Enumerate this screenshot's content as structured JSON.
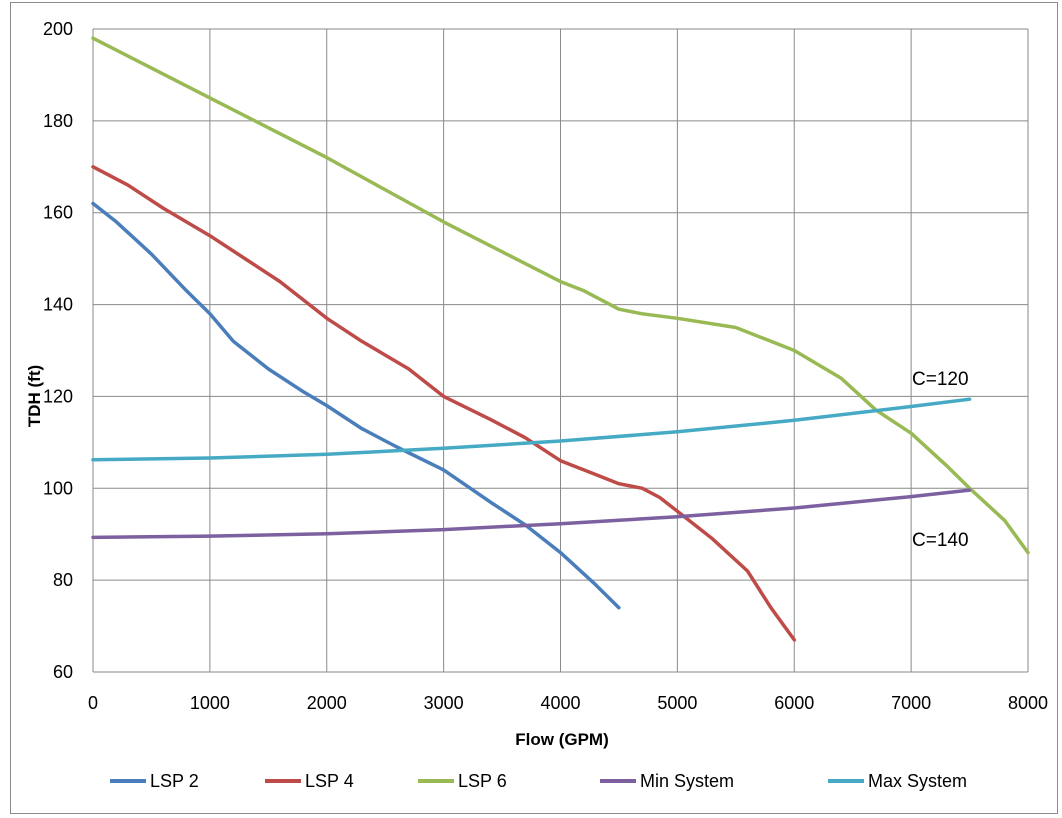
{
  "chart_data": {
    "type": "line",
    "title": "",
    "xlabel": "Flow (GPM)",
    "ylabel": "TDH (ft)",
    "xlim": [
      0,
      8000
    ],
    "ylim": [
      60,
      200
    ],
    "x_ticks": [
      0,
      1000,
      2000,
      3000,
      4000,
      5000,
      6000,
      7000,
      8000
    ],
    "y_ticks": [
      60,
      80,
      100,
      120,
      140,
      160,
      180,
      200
    ],
    "grid": true,
    "legend_position": "bottom",
    "series": [
      {
        "name": "LSP 2",
        "color": "#4a7ebb",
        "x": [
          0,
          200,
          500,
          800,
          1000,
          1200,
          1500,
          1800,
          2000,
          2300,
          2600,
          3000,
          3400,
          3700,
          4000,
          4300,
          4500
        ],
        "y": [
          162,
          158,
          151,
          143,
          138,
          132,
          126,
          121,
          118,
          113,
          109,
          104,
          97,
          92,
          86,
          79,
          74
        ]
      },
      {
        "name": "LSP 4",
        "color": "#be4b48",
        "x": [
          0,
          300,
          600,
          1000,
          1300,
          1600,
          2000,
          2300,
          2700,
          3000,
          3400,
          3700,
          4000,
          4300,
          4500,
          4700,
          4850,
          5000,
          5300,
          5600,
          5800,
          6000
        ],
        "y": [
          170,
          166,
          161,
          155,
          150,
          145,
          137,
          132,
          126,
          120,
          115,
          111,
          106,
          103,
          101,
          100,
          98,
          95,
          89,
          82,
          74,
          67
        ],
        "markers": []
      },
      {
        "name": "LSP 6",
        "color": "#98b954",
        "x": [
          0,
          1000,
          2000,
          3000,
          4000,
          4200,
          4500,
          4700,
          5000,
          5500,
          6000,
          6400,
          6700,
          7000,
          7300,
          7500,
          7800,
          8000
        ],
        "y": [
          198,
          185,
          172,
          158,
          145,
          143,
          139,
          138,
          137,
          135,
          130,
          124,
          117,
          112,
          105,
          100,
          93,
          86
        ]
      },
      {
        "name": "Min System",
        "color": "#7d60a0",
        "x": [
          0,
          1000,
          2000,
          3000,
          4000,
          5000,
          6000,
          7000,
          7500
        ],
        "y": [
          89.3,
          89.6,
          90.1,
          91,
          92.3,
          93.8,
          95.7,
          98.2,
          99.6
        ]
      },
      {
        "name": "Max System",
        "color": "#46aac5",
        "x": [
          0,
          1000,
          2000,
          3000,
          4000,
          5000,
          6000,
          7000,
          7500
        ],
        "y": [
          106.2,
          106.6,
          107.4,
          108.7,
          110.3,
          112.3,
          114.8,
          117.8,
          119.4
        ]
      }
    ],
    "annotations": [
      {
        "text": "C=120",
        "x": 7350,
        "y": 124
      },
      {
        "text": "C=140",
        "x": 7350,
        "y": 89
      }
    ]
  }
}
